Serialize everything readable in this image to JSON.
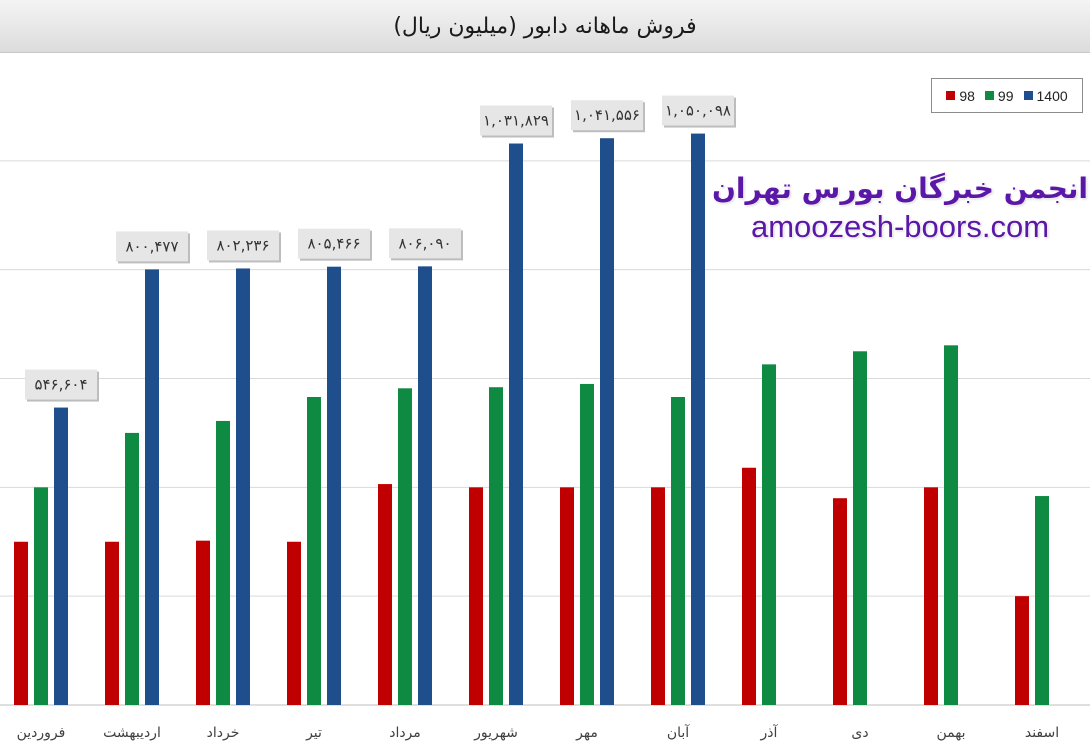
{
  "chart_data": {
    "type": "bar",
    "title": "فروش ماهانه دابور (میلیون ریال)",
    "xlabel": "",
    "ylabel": "",
    "categories": [
      "فروردین",
      "اردیبهشت",
      "خرداد",
      "تیر",
      "مرداد",
      "شهریور",
      "مهر",
      "آبان",
      "آذر",
      "دی",
      "بهمن",
      "اسفند"
    ],
    "ylim": [
      0,
      1200000
    ],
    "grid": true,
    "legend_position": "top-right",
    "series": [
      {
        "name": "98",
        "color": "#c00000",
        "values": [
          300000,
          300000,
          302000,
          300000,
          406000,
          400000,
          400000,
          400000,
          436000,
          380000,
          400000,
          200000
        ]
      },
      {
        "name": "99",
        "color": "#0f8a43",
        "values": [
          400000,
          500000,
          522000,
          566000,
          582000,
          584000,
          590000,
          566000,
          626000,
          650000,
          661000,
          384000
        ]
      },
      {
        "name": "1400",
        "color": "#1f4e8c",
        "values": [
          546604,
          800477,
          802236,
          805466,
          806090,
          1031829,
          1041556,
          1050098,
          null,
          null,
          null,
          null
        ],
        "labels": [
          "۵۴۶,۶۰۴",
          "۸۰۰,۴۷۷",
          "۸۰۲,۲۳۶",
          "۸۰۵,۴۶۶",
          "۸۰۶,۰۹۰",
          "۱,۰۳۱,۸۲۹",
          "۱,۰۴۱,۵۵۶",
          "۱,۰۵۰,۰۹۸",
          null,
          null,
          null,
          null
        ]
      }
    ]
  },
  "watermark": {
    "line1": "انجمن خبرگان بورس تهران",
    "line2": "amoozesh-boors.com"
  }
}
